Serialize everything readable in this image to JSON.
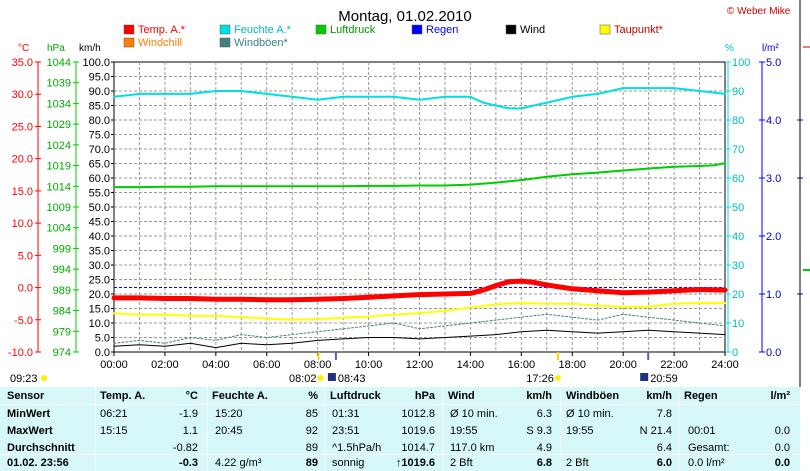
{
  "header": {
    "title": "Montag, 01.02.2010",
    "credit": "© Weber Mike"
  },
  "legend": [
    {
      "label": "Temp. A.*",
      "color": "#ff0000"
    },
    {
      "label": "Feuchte A.*",
      "color": "#00e0e0"
    },
    {
      "label": "Luftdruck",
      "color": "#00cc00"
    },
    {
      "label": "Regen",
      "color": "#0000ff"
    },
    {
      "label": "Wind",
      "color": "#000000"
    },
    {
      "label": "Taupunkt*",
      "color": "#ffff00"
    },
    {
      "label": "Windchill",
      "color": "#ff8000"
    },
    {
      "label": "Windböen*",
      "color": "#408080"
    }
  ],
  "units": {
    "temp": "°C",
    "press": "hPa",
    "wind": "km/h",
    "hum": "%",
    "rain": "l/m²"
  },
  "chart_data": {
    "type": "line",
    "x_ticks": [
      "00:00",
      "02:00",
      "04:00",
      "06:00",
      "08:00",
      "10:00",
      "12:00",
      "14:00",
      "16:00",
      "18:00",
      "20:00",
      "22:00",
      "24:00"
    ],
    "x_range_hours": [
      0,
      24
    ],
    "axes": {
      "temp_c": {
        "ticks": [
          "35.0",
          "30.0",
          "25.0",
          "20.0",
          "15.0",
          "10.0",
          "5.0",
          "0.0",
          "-5.0",
          "-10.0"
        ],
        "range": [
          -10,
          35
        ]
      },
      "pressure_hpa": {
        "ticks": [
          "1044",
          "1039",
          "1034",
          "1029",
          "1024",
          "1019",
          "1014",
          "1009",
          "1004",
          "999",
          "994",
          "989",
          "984",
          "979",
          "974"
        ],
        "range": [
          974,
          1044
        ]
      },
      "wind_kmh": {
        "ticks": [
          "100.0",
          "95.0",
          "90.0",
          "85.0",
          "80.0",
          "75.0",
          "70.0",
          "65.0",
          "60.0",
          "55.0",
          "50.0",
          "45.0",
          "40.0",
          "35.0",
          "30.0",
          "25.0",
          "20.0",
          "15.0",
          "10.0",
          "5.0",
          "0.0"
        ],
        "range": [
          0,
          100
        ]
      },
      "humidity_pct": {
        "ticks": [
          "100",
          "90",
          "80",
          "70",
          "60",
          "50",
          "40",
          "30",
          "20",
          "10",
          "0"
        ],
        "range": [
          0,
          100
        ]
      },
      "rain_lm2": {
        "ticks": [
          "5.0",
          "4.0",
          "3.0",
          "2.0",
          "1.0",
          "0.0"
        ],
        "range": [
          0,
          5
        ]
      }
    },
    "series": [
      {
        "name": "Feuchte A.*",
        "axis": "humidity_pct",
        "color": "#00e0e0",
        "width": 2,
        "x": [
          0,
          1,
          2,
          3,
          4,
          5,
          6,
          7,
          8,
          9,
          10,
          11,
          12,
          13,
          14,
          14.5,
          15,
          15.5,
          16,
          16.5,
          17,
          18,
          19,
          20,
          21,
          22,
          23,
          24
        ],
        "y": [
          88,
          89,
          89,
          89,
          90,
          90,
          89,
          88,
          87,
          88,
          88,
          88,
          87,
          88,
          88,
          86,
          85,
          84,
          84,
          85,
          86,
          88,
          89,
          91,
          91,
          91,
          90,
          89
        ]
      },
      {
        "name": "Luftdruck",
        "axis": "pressure_hpa",
        "color": "#00cc00",
        "width": 2,
        "x": [
          0,
          1,
          2,
          3,
          4,
          5,
          6,
          7,
          8,
          9,
          10,
          11,
          12,
          13,
          14,
          15,
          16,
          17,
          18,
          19,
          20,
          21,
          22,
          23,
          23.6,
          24
        ],
        "y": [
          1013.8,
          1013.8,
          1013.9,
          1013.9,
          1014.0,
          1014.0,
          1014.0,
          1014.0,
          1014.0,
          1014.0,
          1014.1,
          1014.1,
          1014.2,
          1014.2,
          1014.4,
          1014.9,
          1015.5,
          1016.3,
          1016.9,
          1017.3,
          1017.8,
          1018.3,
          1018.7,
          1018.9,
          1019.1,
          1019.6
        ]
      },
      {
        "name": "Taupunkt*",
        "axis": "temp_c",
        "color": "#ffff00",
        "width": 2,
        "x": [
          0,
          1,
          2,
          3,
          4,
          5,
          6,
          7,
          8,
          9,
          10,
          11,
          12,
          13,
          14,
          15,
          16,
          17,
          18,
          19,
          20,
          21,
          22,
          23,
          24
        ],
        "y": [
          -4.0,
          -4.2,
          -4.2,
          -4.4,
          -4.4,
          -4.6,
          -4.8,
          -5.0,
          -4.9,
          -4.7,
          -4.5,
          -4.2,
          -4.0,
          -3.6,
          -3.1,
          -2.6,
          -2.4,
          -2.5,
          -2.5,
          -2.8,
          -3.0,
          -3.0,
          -2.5,
          -2.4,
          -2.4
        ]
      },
      {
        "name": "Temp. A.*",
        "axis": "temp_c",
        "color": "#ff0000",
        "width": 5,
        "x": [
          0,
          1,
          2,
          3,
          4,
          5,
          6,
          7,
          8,
          9,
          10,
          11,
          12,
          13,
          14,
          14.5,
          15,
          15.5,
          16,
          16.5,
          17,
          18,
          19,
          20,
          21,
          22,
          23,
          24
        ],
        "y": [
          -1.6,
          -1.6,
          -1.7,
          -1.7,
          -1.8,
          -1.8,
          -1.9,
          -1.9,
          -1.8,
          -1.7,
          -1.5,
          -1.3,
          -1.1,
          -1.0,
          -0.9,
          -0.4,
          0.3,
          0.9,
          1.0,
          0.8,
          0.4,
          -0.2,
          -0.5,
          -0.8,
          -0.7,
          -0.5,
          -0.3,
          -0.4
        ]
      },
      {
        "name": "Windböen*",
        "axis": "wind_kmh",
        "color": "#408080",
        "width": 1,
        "dash": "2,2",
        "x": [
          0,
          1,
          2,
          3,
          4,
          5,
          6,
          7,
          8,
          9,
          10,
          11,
          12,
          13,
          14,
          15,
          16,
          17,
          18,
          19,
          20,
          21,
          22,
          23,
          24
        ],
        "y": [
          3,
          4,
          3,
          5,
          4,
          6,
          5,
          6,
          7,
          8,
          9,
          10,
          8,
          9,
          10,
          11,
          12,
          13,
          12,
          11,
          13,
          12,
          11,
          10,
          9
        ]
      },
      {
        "name": "Wind",
        "axis": "wind_kmh",
        "color": "#000000",
        "width": 1,
        "x": [
          0,
          1,
          2,
          3,
          4,
          5,
          6,
          7,
          8,
          9,
          10,
          11,
          12,
          13,
          14,
          15,
          16,
          17,
          18,
          19,
          20,
          21,
          22,
          23,
          24
        ],
        "y": [
          2,
          2.5,
          2,
          3,
          1.5,
          3,
          2.5,
          3,
          4,
          4.5,
          5,
          5,
          4.5,
          5,
          5.5,
          6,
          7,
          7.5,
          7,
          6.5,
          7,
          7.5,
          7,
          6.5,
          6
        ]
      }
    ],
    "zero_line": {
      "axis": "temp_c",
      "value": 0,
      "color": "#0000ff"
    },
    "sun_markers": {
      "sunrise": "08:02",
      "sunrise_hm": "08:43",
      "sunset": "17:26",
      "sunset_hm": "20:59",
      "now": "09:23"
    },
    "right_panel": {
      "r1": "4.0",
      "r2": "3.0",
      "r3": "1.0"
    }
  },
  "table": {
    "headers": [
      "Sensor",
      "Temp. A.",
      "°C",
      "Feuchte A.",
      "%",
      "Luftdruck",
      "hPa",
      "Wind",
      "km/h",
      "Windböen",
      "km/h",
      "Regen",
      "l/m²"
    ],
    "rows": [
      {
        "label": "MinWert",
        "t_time": "06:21",
        "t_val": "-1.9",
        "h_time": "15:20",
        "h_val": "85",
        "p_time": "01:31",
        "p_val": "1012.8",
        "w_lbl": "Ø 10 min.",
        "w_val": "6.3",
        "g_lbl": "Ø 10 min.",
        "g_val": "7.8",
        "r_lbl": "",
        "r_val": ""
      },
      {
        "label": "MaxWert",
        "t_time": "15:15",
        "t_val": "1.1",
        "h_time": "20:45",
        "h_val": "92",
        "p_time": "23:51",
        "p_val": "1019.6",
        "w_lbl": "19:55",
        "w_val": "S 9.3",
        "g_lbl": "19:55",
        "g_val": "N 21.4",
        "r_lbl": "00:01",
        "r_val": "0.0"
      },
      {
        "label": "Durchschnitt",
        "t_time": "",
        "t_val": "-0.82",
        "h_time": "",
        "h_val": "89",
        "p_time": "^1.5hPa/h",
        "p_val": "1014.7",
        "w_lbl": "117.0 km",
        "w_val": "4.9",
        "g_lbl": "",
        "g_val": "6.4",
        "r_lbl": "Gesamt:",
        "r_val": "0.0"
      },
      {
        "label": "01.02. 23:56",
        "t_time": "",
        "t_val": "-0.3",
        "h_time": "4.22 g/m³",
        "h_val": "89",
        "p_time": "sonnig",
        "p_val": "1019.6",
        "w_lbl": "2 Bft",
        "w_val": "6.8",
        "g_lbl": "2 Bft",
        "g_val": "6.0",
        "r_lbl": "0.0 l/m²",
        "r_val": "0.0"
      }
    ]
  }
}
